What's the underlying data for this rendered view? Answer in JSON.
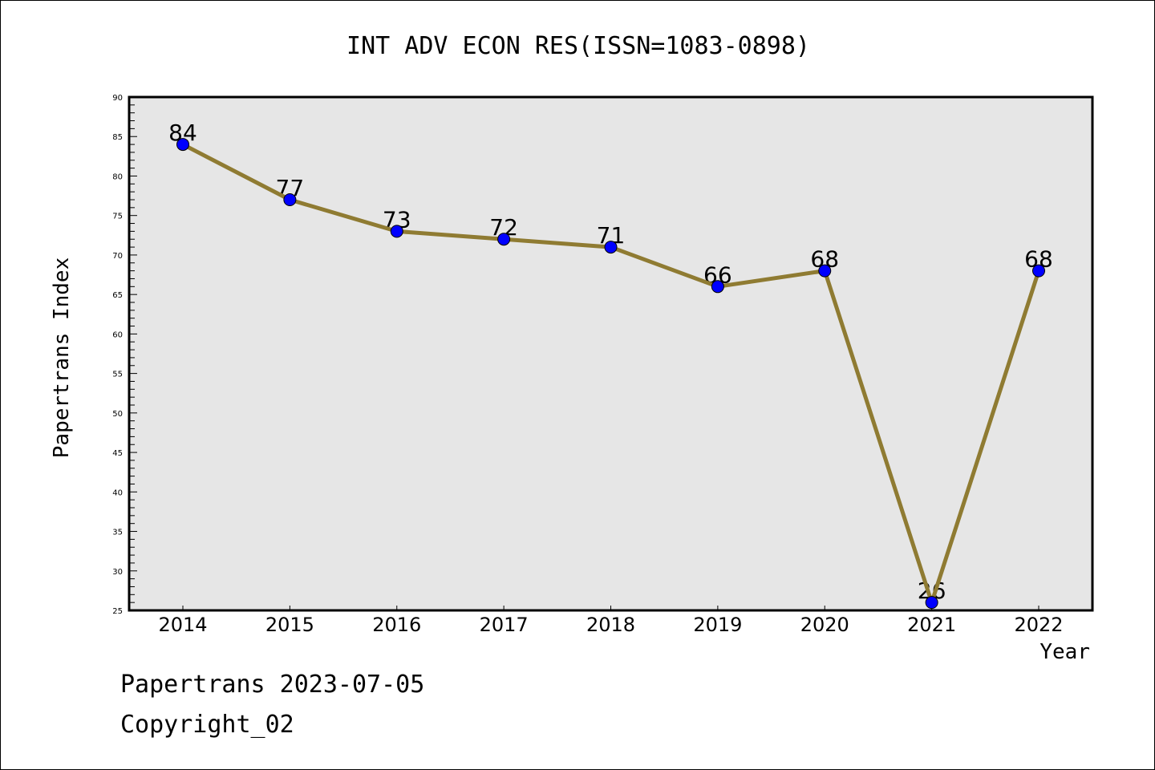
{
  "chart_data": {
    "type": "line",
    "title": "INT ADV ECON RES(ISSN=1083-0898)",
    "xlabel": "Year",
    "ylabel": "Papertrans Index",
    "x": [
      "2014",
      "2015",
      "2016",
      "2017",
      "2018",
      "2019",
      "2020",
      "2021",
      "2022"
    ],
    "series": [
      {
        "name": "Papertrans Index",
        "values": [
          84,
          77,
          73,
          72,
          71,
          66,
          68,
          26,
          68
        ]
      }
    ],
    "ylim": [
      25,
      90
    ],
    "yticks": [
      25,
      30,
      35,
      40,
      45,
      50,
      55,
      60,
      65,
      70,
      75,
      80,
      85,
      90
    ],
    "grid": false,
    "colors": {
      "line": "#8f7b32",
      "marker": "#0000ff",
      "plot_bg": "#e6e6e6"
    }
  },
  "footer": {
    "line1": "Papertrans 2023-07-05",
    "line2": "Copyright_02"
  }
}
